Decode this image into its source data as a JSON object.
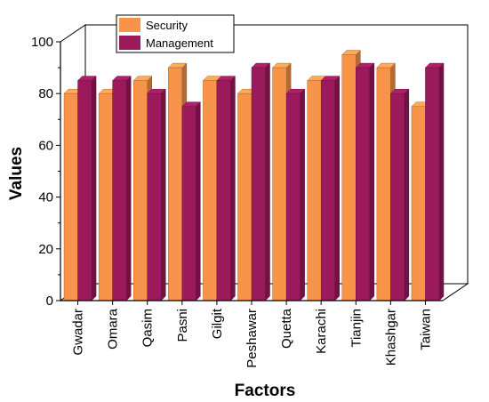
{
  "chart_data": {
    "type": "bar",
    "title": "",
    "xlabel": "Factors",
    "ylabel": "Values",
    "ylim": [
      0,
      100
    ],
    "yticks": [
      0,
      20,
      40,
      60,
      80,
      100
    ],
    "grid": false,
    "legend_position": "top-left",
    "categories": [
      "Gwadar",
      "Omara",
      "Qasim",
      "Pasni",
      "Gilgit",
      "Peshawar",
      "Quetta",
      "Karachi",
      "Tianjin",
      "Khashgar",
      "Taiwan"
    ],
    "series": [
      {
        "name": "Security",
        "color": "#F7944A",
        "values": [
          80,
          80,
          85,
          90,
          85,
          80,
          90,
          85,
          95,
          90,
          75
        ]
      },
      {
        "name": "Management",
        "color": "#9B1A5C",
        "values": [
          85,
          85,
          80,
          75,
          85,
          90,
          80,
          85,
          90,
          80,
          90
        ]
      }
    ]
  }
}
